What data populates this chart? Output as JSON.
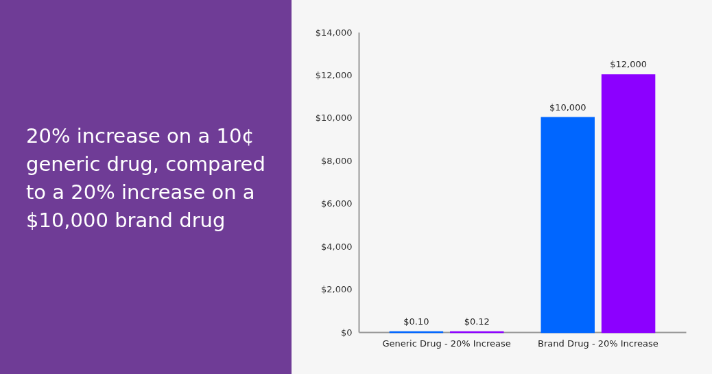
{
  "chart_data": {
    "type": "bar",
    "title": "20% increase on a 10¢ generic drug, compared to a 20% increase on a $10,000 brand drug",
    "categories": [
      "Generic Drug - 20% Increase",
      "Brand Drug - 20% Increase"
    ],
    "series": [
      {
        "color": "#0066ff",
        "values": [
          0.1,
          10000
        ],
        "value_labels": [
          "$0.10",
          "$10,000"
        ]
      },
      {
        "color": "#8c00ff",
        "values": [
          0.12,
          12000
        ],
        "value_labels": [
          "$0.12",
          "$12,000"
        ]
      }
    ],
    "ylim": [
      0,
      14000
    ],
    "yticks": [
      {
        "value": 0,
        "label": "$0"
      },
      {
        "value": 2000,
        "label": "$2,000"
      },
      {
        "value": 4000,
        "label": "$4,000"
      },
      {
        "value": 6000,
        "label": "$6,000"
      },
      {
        "value": 8000,
        "label": "$8,000"
      },
      {
        "value": 10000,
        "label": "$10,000"
      },
      {
        "value": 12000,
        "label": "$12,000"
      },
      {
        "value": 14000,
        "label": "$14,000"
      }
    ]
  }
}
